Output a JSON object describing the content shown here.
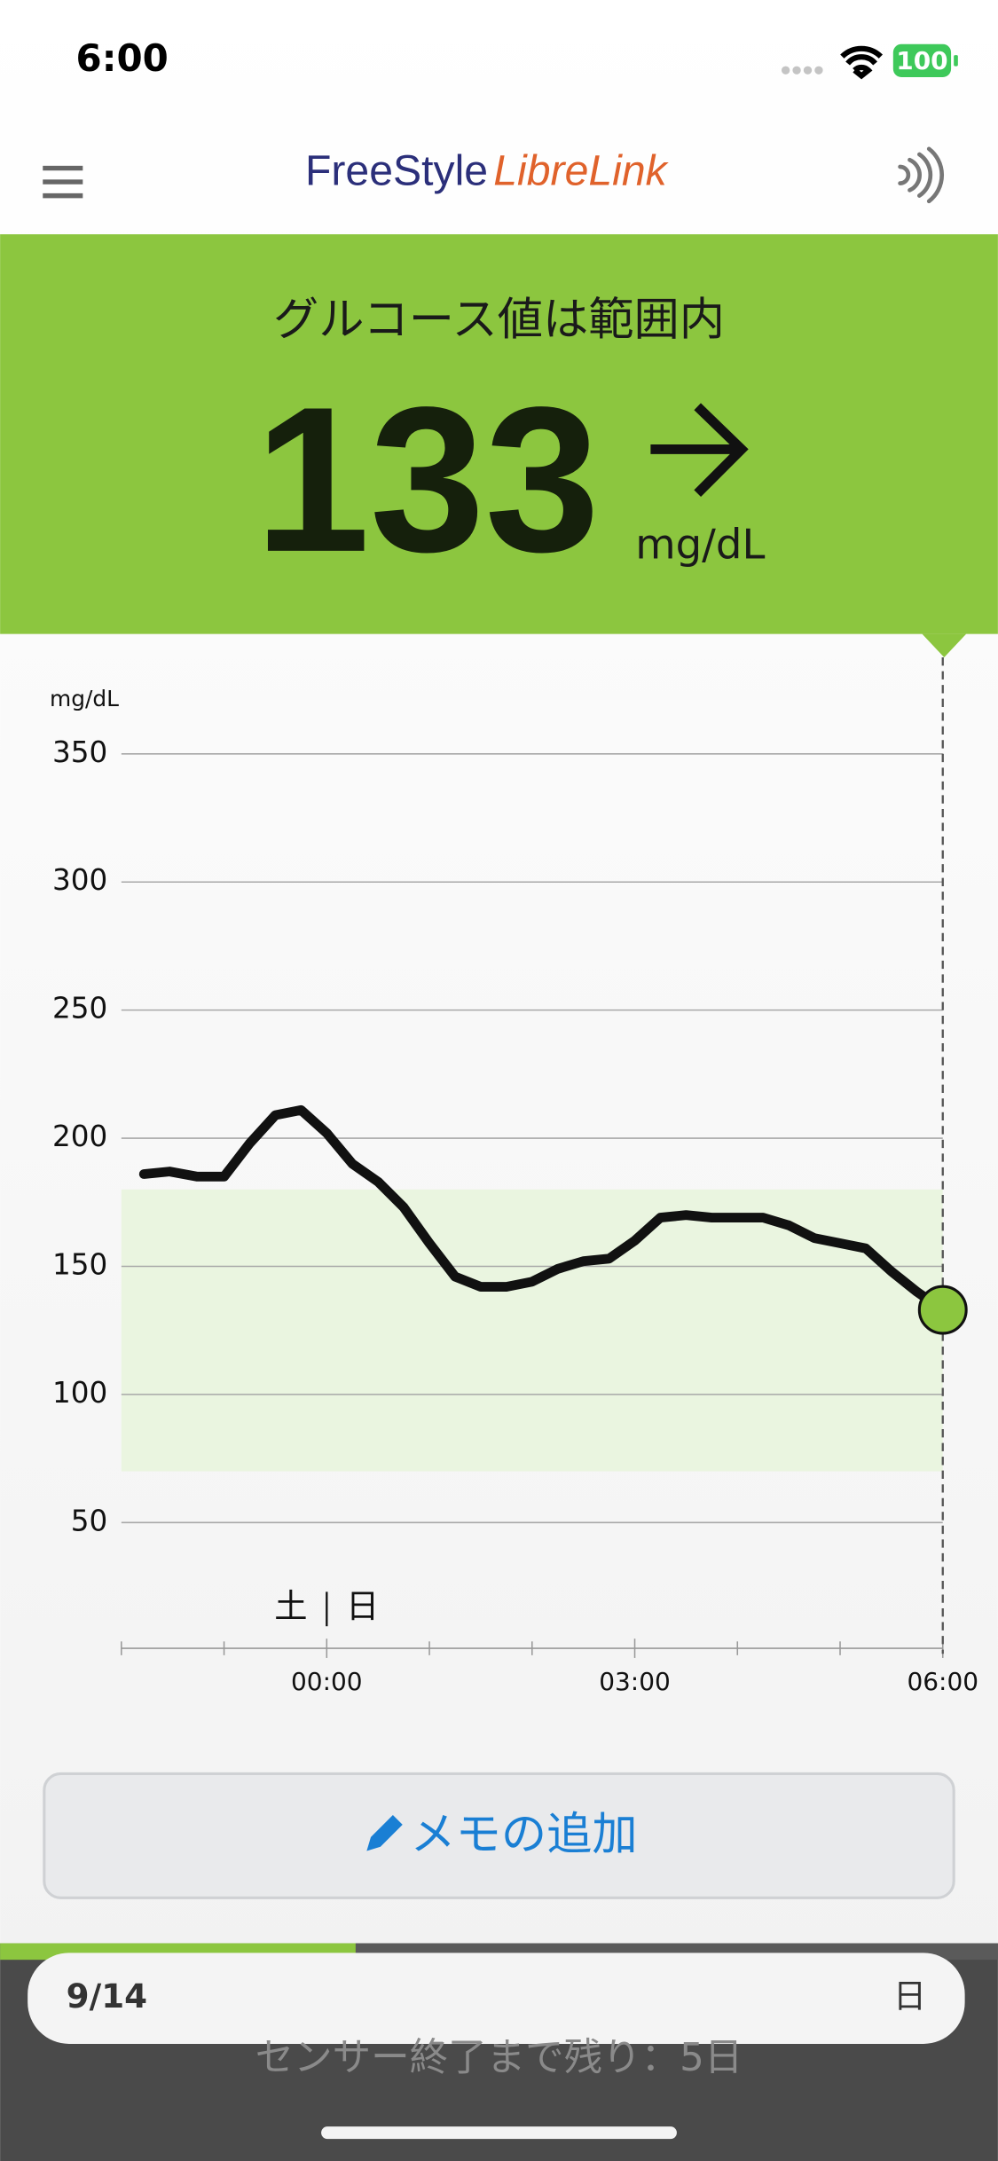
{
  "status_bar": {
    "time": "6:00",
    "battery": "100"
  },
  "header": {
    "brand": "FreeStyle",
    "product": "LibreLink"
  },
  "reading": {
    "status": "グルコース値は範囲内",
    "value": 133,
    "unit": "mg/dL"
  },
  "chart_data": {
    "type": "line",
    "y_label": "mg/dL",
    "x": [
      -1.78,
      -1.53,
      -1.26,
      -1.0,
      -0.75,
      -0.5,
      -0.25,
      0,
      0.25,
      0.5,
      0.75,
      1.0,
      1.25,
      1.5,
      1.75,
      2.0,
      2.25,
      2.5,
      2.75,
      3.0,
      3.25,
      3.5,
      3.75,
      4.0,
      4.25,
      4.5,
      4.75,
      5.0,
      5.25,
      5.5,
      5.75,
      6.0
    ],
    "series": [
      {
        "color": "#111111",
        "values": [
          186,
          187,
          185,
          185,
          198,
          209,
          211,
          202,
          190,
          183,
          173,
          159,
          146,
          142,
          142,
          144,
          149,
          152,
          153,
          160,
          169,
          170,
          169,
          169,
          169,
          166,
          161,
          159,
          157,
          148,
          140,
          133
        ]
      }
    ],
    "ylim": [
      0,
      350
    ],
    "yticks": [
      50,
      100,
      150,
      200,
      250,
      300,
      350
    ],
    "xlim": [
      -2,
      6
    ],
    "xticks": [
      {
        "value": 0,
        "label": "00:00"
      },
      {
        "value": 3,
        "label": "03:00"
      },
      {
        "value": 6,
        "label": "06:00"
      }
    ],
    "minor_xticks": [
      -2,
      -1,
      1,
      2,
      4,
      5
    ],
    "target_range": [
      70,
      180
    ],
    "target_color": "#eaf5e0",
    "grid": true,
    "day_labels": [
      "土",
      "日"
    ],
    "day_boundary": 0
  },
  "memo_button": {
    "label": "メモの追加"
  },
  "calendar": {
    "date": "9/14",
    "weekday": "日"
  },
  "sensor_note": "センサー終了まで残り：5日"
}
